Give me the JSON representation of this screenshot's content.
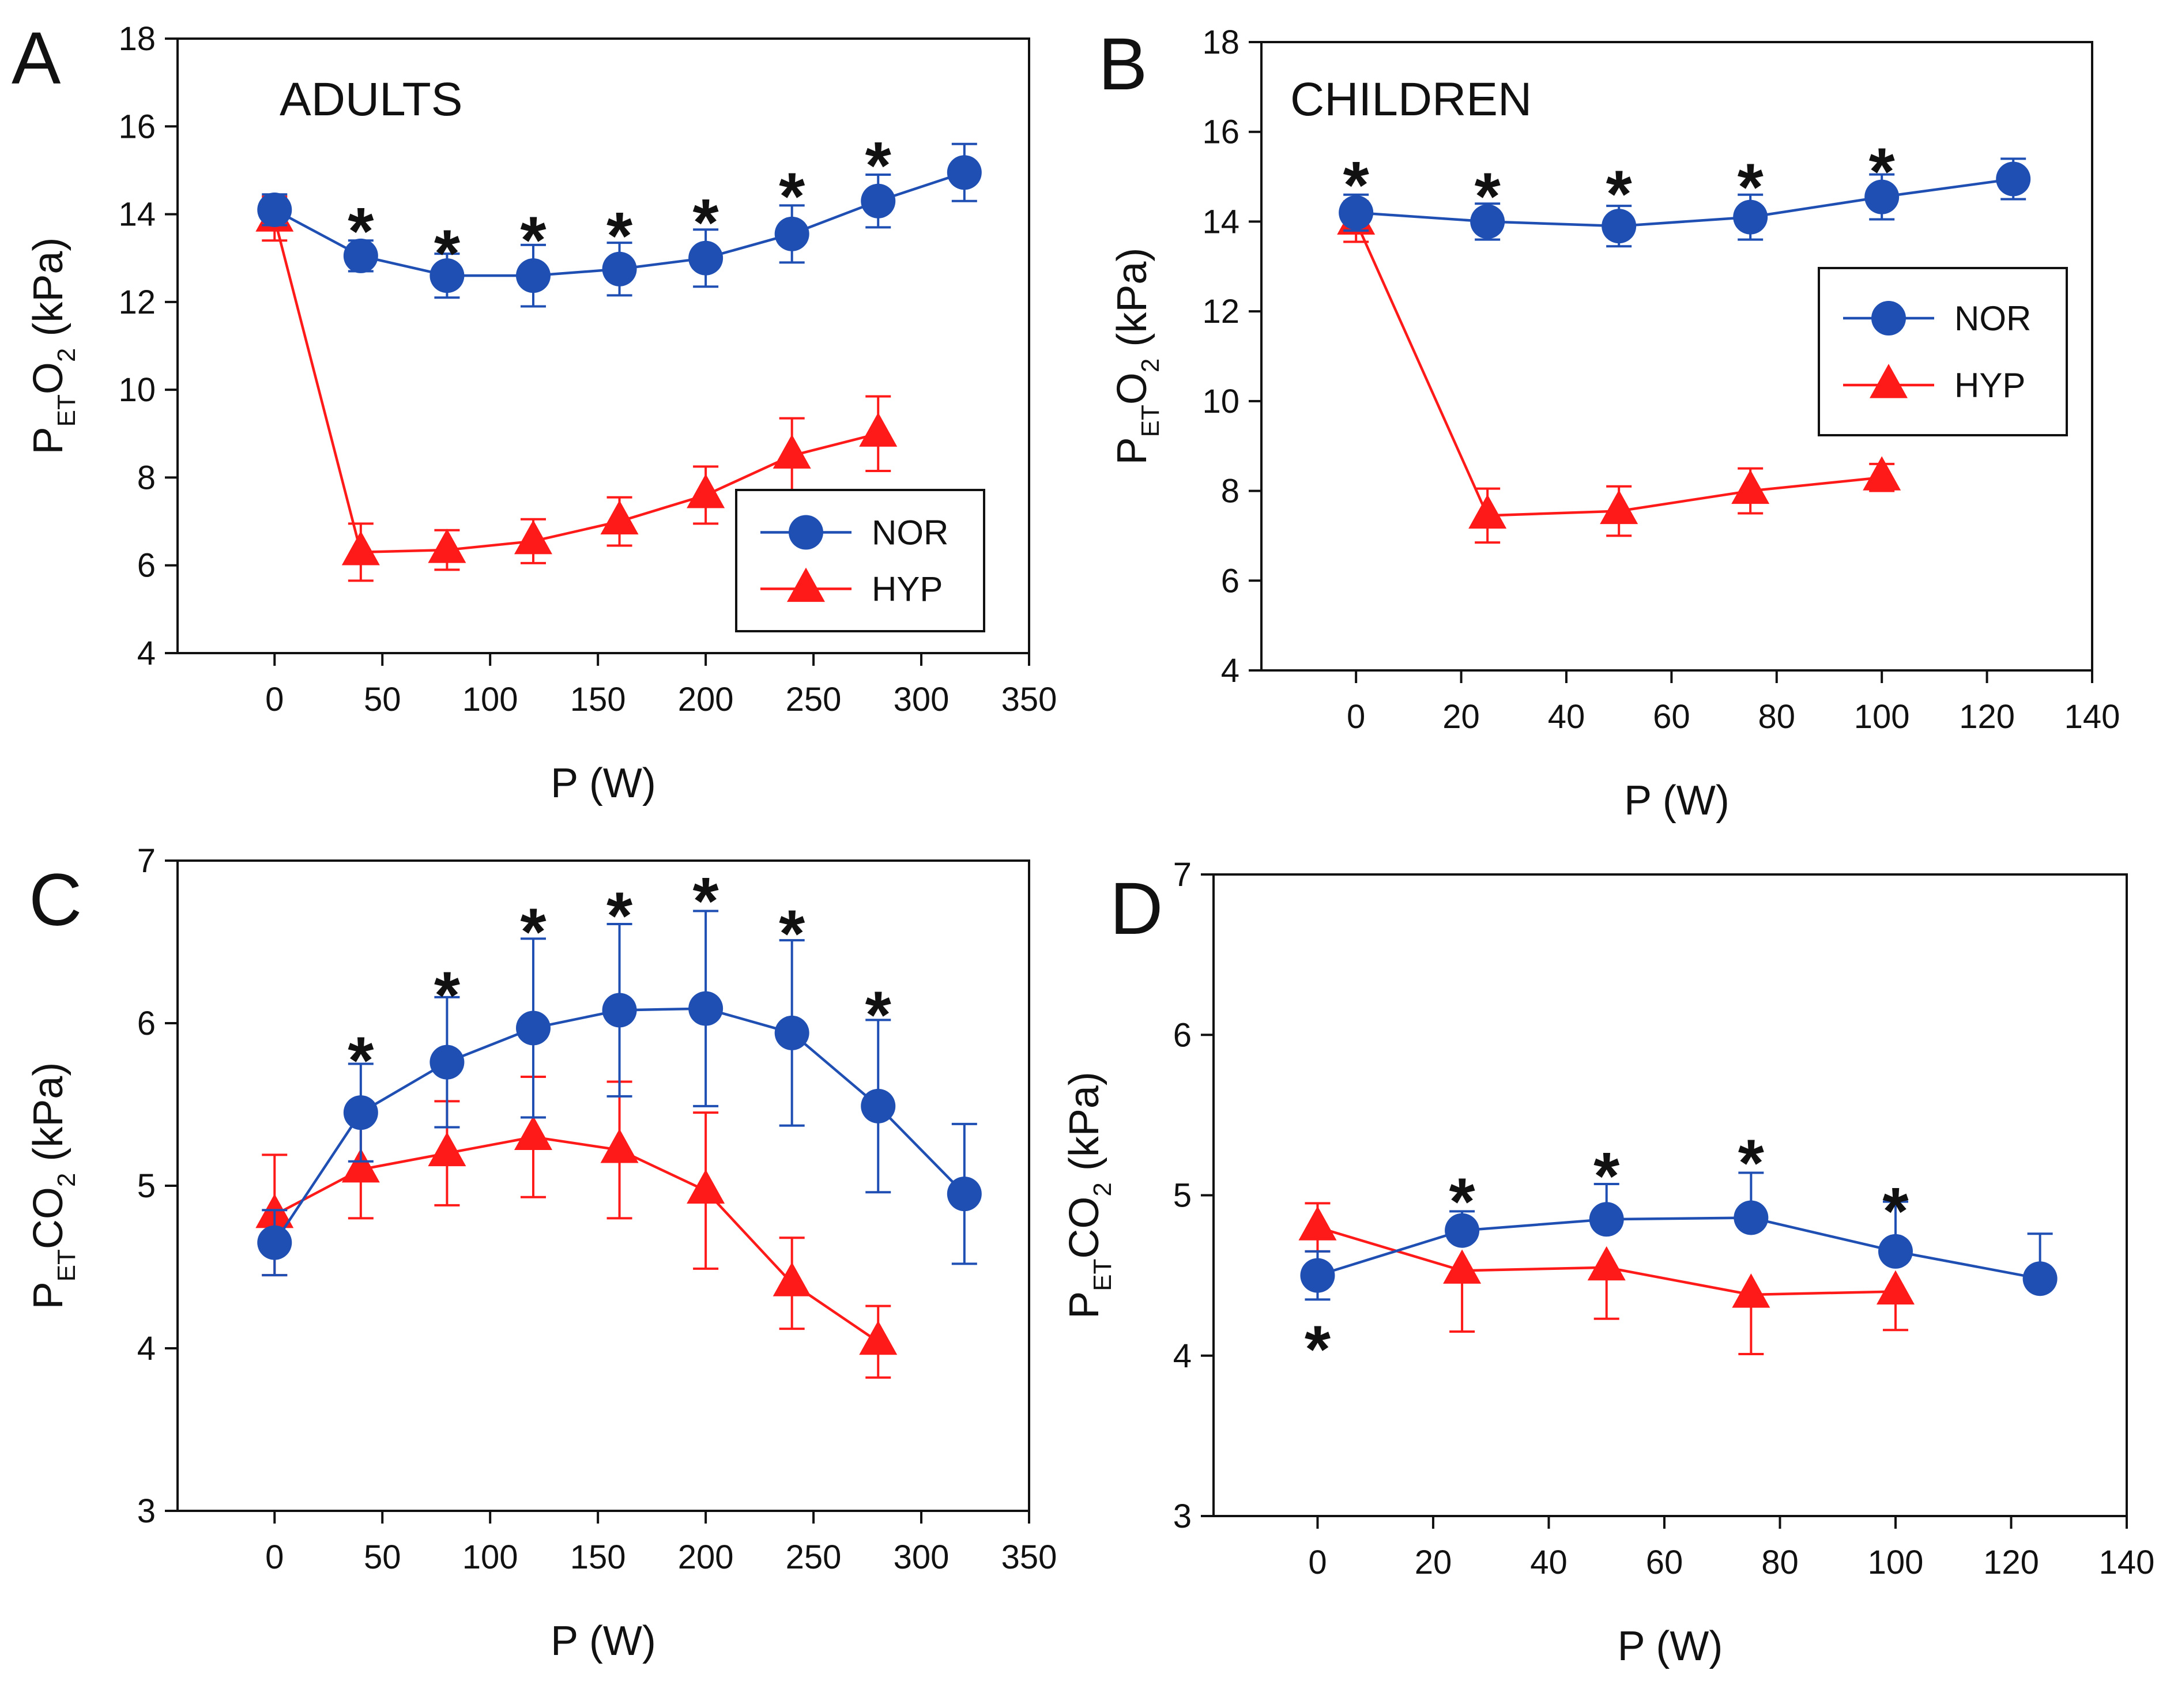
{
  "colors": {
    "nor": "#1f4fb3",
    "hyp": "#ff1a1a",
    "axis": "#111111"
  },
  "chart_data": [
    {
      "panel": "A",
      "type": "line",
      "title": "ADULTS",
      "xlabel": "P (W)",
      "ylabel": {
        "base": "P",
        "sub": "ET",
        "gas": "O",
        "gas_sub": "2",
        "unit": "(kPa)"
      },
      "xlim": [
        -45,
        350
      ],
      "ylim": [
        4,
        18
      ],
      "xticks": [
        0,
        50,
        100,
        150,
        200,
        250,
        300,
        350
      ],
      "yticks": [
        4,
        6,
        8,
        10,
        12,
        14,
        16,
        18
      ],
      "legend": {
        "position": "lower-right",
        "entries": [
          "NOR",
          "HYP"
        ]
      },
      "series": [
        {
          "name": "NOR",
          "marker": "circle",
          "x": [
            0,
            40,
            80,
            120,
            160,
            200,
            240,
            280,
            320
          ],
          "y": [
            14.1,
            13.05,
            12.6,
            12.6,
            12.75,
            13.0,
            13.55,
            14.3,
            14.95
          ],
          "err": [
            0.35,
            0.35,
            0.5,
            0.7,
            0.6,
            0.65,
            0.65,
            0.6,
            0.65
          ],
          "err_dir": [
            "both",
            "both",
            "both",
            "both",
            "both",
            "both",
            "both",
            "both",
            "both"
          ]
        },
        {
          "name": "HYP",
          "marker": "triangle",
          "x": [
            0,
            40,
            80,
            120,
            160,
            200,
            240,
            280
          ],
          "y": [
            13.9,
            6.3,
            6.35,
            6.55,
            7.0,
            7.6,
            8.5,
            9.0
          ],
          "err": [
            0.5,
            0.65,
            0.45,
            0.5,
            0.55,
            0.65,
            0.85,
            0.85
          ],
          "err_dir": [
            "both",
            "both",
            "both",
            "both",
            "both",
            "both",
            "both",
            "both"
          ]
        }
      ],
      "significance": {
        "symbol": "*",
        "x": [
          40,
          80,
          120,
          160,
          200,
          240,
          280
        ],
        "y": [
          13.9,
          13.4,
          13.7,
          13.8,
          14.1,
          14.7,
          15.4
        ]
      }
    },
    {
      "panel": "B",
      "type": "line",
      "title": "CHILDREN",
      "xlabel": "P (W)",
      "ylabel": {
        "base": "P",
        "sub": "ET",
        "gas": "O",
        "gas_sub": "2",
        "unit": "(kPa)"
      },
      "xlim": [
        -18,
        140
      ],
      "ylim": [
        4,
        18
      ],
      "xticks": [
        0,
        20,
        40,
        60,
        80,
        100,
        120,
        140
      ],
      "yticks": [
        4,
        6,
        8,
        10,
        12,
        14,
        16,
        18
      ],
      "legend": {
        "position": "upper-right",
        "entries": [
          "NOR",
          "HYP"
        ]
      },
      "series": [
        {
          "name": "NOR",
          "marker": "circle",
          "x": [
            0,
            25,
            50,
            75,
            100,
            125
          ],
          "y": [
            14.2,
            14.0,
            13.9,
            14.1,
            14.55,
            14.95
          ],
          "err": [
            0.4,
            0.4,
            0.45,
            0.5,
            0.5,
            0.45
          ],
          "err_dir": [
            "both",
            "both",
            "both",
            "both",
            "both",
            "both"
          ]
        },
        {
          "name": "HYP",
          "marker": "triangle",
          "x": [
            0,
            25,
            50,
            75,
            100
          ],
          "y": [
            14.0,
            7.45,
            7.55,
            8.0,
            8.3
          ],
          "err": [
            0.45,
            0.6,
            0.55,
            0.5,
            0.3
          ],
          "err_dir": [
            "both",
            "both",
            "both",
            "both",
            "both"
          ]
        }
      ],
      "significance": {
        "symbol": "*",
        "x": [
          0,
          25,
          50,
          75,
          100
        ],
        "y": [
          15.1,
          14.85,
          14.9,
          15.05,
          15.4
        ]
      }
    },
    {
      "panel": "C",
      "type": "line",
      "title": "",
      "xlabel": "P (W)",
      "ylabel": {
        "base": "P",
        "sub": "ET",
        "gas": "CO",
        "gas_sub": "2",
        "unit": "(kPa)"
      },
      "xlim": [
        -45,
        350
      ],
      "ylim": [
        3,
        7
      ],
      "xticks": [
        0,
        50,
        100,
        150,
        200,
        250,
        300,
        350
      ],
      "yticks": [
        3,
        4,
        5,
        6,
        7
      ],
      "legend": null,
      "series": [
        {
          "name": "NOR",
          "marker": "circle",
          "x": [
            0,
            40,
            80,
            120,
            160,
            200,
            240,
            280,
            320
          ],
          "y": [
            4.65,
            5.45,
            5.76,
            5.97,
            6.08,
            6.09,
            5.94,
            5.49,
            4.95
          ],
          "err": [
            0.2,
            0.3,
            0.4,
            0.55,
            0.53,
            0.6,
            0.57,
            0.53,
            0.43
          ],
          "err_dir": [
            "both",
            "both",
            "both",
            "both",
            "both",
            "both",
            "both",
            "both",
            "both"
          ]
        },
        {
          "name": "HYP",
          "marker": "triangle",
          "x": [
            0,
            40,
            80,
            120,
            160,
            200,
            240,
            280
          ],
          "y": [
            4.82,
            5.1,
            5.2,
            5.3,
            5.22,
            4.97,
            4.4,
            4.04
          ],
          "err": [
            0.37,
            0.3,
            0.32,
            0.37,
            0.42,
            0.48,
            0.28,
            0.22
          ],
          "err_dir": [
            "both",
            "both",
            "both",
            "both",
            "both",
            "both",
            "both",
            "both"
          ]
        }
      ],
      "significance": {
        "symbol": "*",
        "x": [
          40,
          80,
          120,
          160,
          200,
          240,
          280
        ],
        "y": [
          5.85,
          6.25,
          6.64,
          6.74,
          6.83,
          6.63,
          6.13
        ]
      }
    },
    {
      "panel": "D",
      "type": "line",
      "title": "",
      "xlabel": "P (W)",
      "ylabel": {
        "base": "P",
        "sub": "ET",
        "gas": "CO",
        "gas_sub": "2",
        "unit": "(kPa)"
      },
      "xlim": [
        -18,
        140
      ],
      "ylim": [
        3,
        7
      ],
      "xticks": [
        0,
        20,
        40,
        60,
        80,
        100,
        120,
        140
      ],
      "yticks": [
        3,
        4,
        5,
        6,
        7
      ],
      "legend": null,
      "series": [
        {
          "name": "NOR",
          "marker": "circle",
          "x": [
            0,
            25,
            50,
            75,
            100,
            125
          ],
          "y": [
            4.5,
            4.78,
            4.85,
            4.86,
            4.65,
            4.48
          ],
          "err": [
            0.15,
            0.12,
            0.22,
            0.28,
            0.31,
            0.28
          ],
          "err_dir": [
            "both",
            "up",
            "up",
            "up",
            "up",
            "up"
          ]
        },
        {
          "name": "HYP",
          "marker": "triangle",
          "x": [
            0,
            25,
            50,
            75,
            100
          ],
          "y": [
            4.8,
            4.53,
            4.55,
            4.38,
            4.4
          ],
          "err": [
            0.15,
            0.38,
            0.32,
            0.37,
            0.24
          ],
          "err_dir": [
            "both",
            "down",
            "down",
            "down",
            "down"
          ]
        }
      ],
      "significance": {
        "symbol": "*",
        "x": [
          0,
          25,
          50,
          75,
          100
        ],
        "y": [
          4.12,
          5.04,
          5.2,
          5.28,
          4.98
        ]
      }
    }
  ]
}
